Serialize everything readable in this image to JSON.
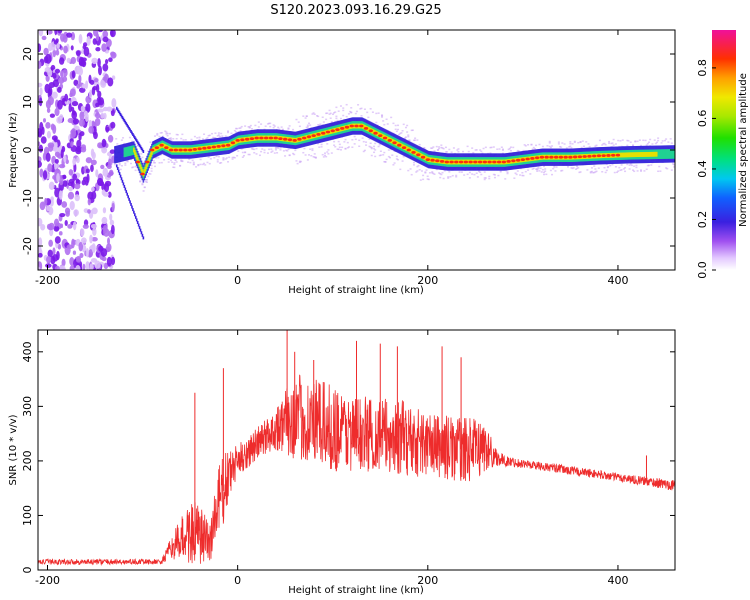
{
  "title": "S120.2023.093.16.29.G25",
  "colorbar": {
    "label": "Normalized spectral amplitude",
    "ticks": [
      "0.0",
      "0.2",
      "0.4",
      "0.6",
      "0.8"
    ],
    "tick_values": [
      0.0,
      0.2,
      0.4,
      0.6,
      0.8
    ],
    "range": [
      0,
      0.95
    ]
  },
  "chart_data": [
    {
      "type": "heatmap",
      "xlabel": "Height of straight line (km)",
      "ylabel": "Frequency (Hz)",
      "xlim": [
        -210,
        460
      ],
      "ylim": [
        -25,
        25
      ],
      "xticks": [
        -200,
        0,
        200,
        400
      ],
      "xtick_labels": [
        "-200",
        "0",
        "200",
        "400"
      ],
      "yticks": [
        20,
        10,
        0,
        -10,
        -20
      ],
      "ytick_labels": [
        "20",
        "10",
        "0",
        "-10",
        "-20"
      ],
      "ridge": {
        "x": [
          -140,
          -130,
          -120,
          -110,
          -100,
          -90,
          -80,
          -70,
          -50,
          -30,
          -10,
          0,
          20,
          40,
          60,
          80,
          100,
          120,
          130,
          150,
          170,
          190,
          200,
          220,
          250,
          280,
          300,
          320,
          350,
          380,
          410,
          460
        ],
        "y": [
          -1,
          -1,
          -0.5,
          0,
          -5,
          0,
          1,
          0,
          0,
          0.5,
          1,
          2,
          2.5,
          2.5,
          2,
          3,
          4,
          5,
          5,
          3,
          1,
          -1,
          -2,
          -2.5,
          -2.5,
          -2.5,
          -2,
          -1.5,
          -1.5,
          -1.2,
          -1,
          -0.8
        ]
      },
      "noise_region_x": [
        -210,
        -130
      ]
    },
    {
      "type": "line",
      "xlabel": "Height of straight line (km)",
      "ylabel": "SNR (10 * v/v)",
      "xlim": [
        -210,
        460
      ],
      "ylim": [
        0,
        440
      ],
      "xticks": [
        -200,
        0,
        200,
        400
      ],
      "xtick_labels": [
        "-200",
        "0",
        "200",
        "400"
      ],
      "yticks": [
        0,
        100,
        200,
        300,
        400
      ],
      "ytick_labels": [
        "0",
        "100",
        "200",
        "300",
        "400"
      ],
      "color": "#ee2c2c",
      "envelope": {
        "x": [
          -210,
          -80,
          -70,
          -50,
          -40,
          -30,
          -20,
          -10,
          0,
          20,
          40,
          60,
          80,
          100,
          120,
          140,
          160,
          180,
          200,
          220,
          240,
          260,
          270,
          280,
          300,
          340,
          380,
          420,
          460
        ],
        "mean": [
          15,
          15,
          40,
          70,
          60,
          50,
          120,
          170,
          200,
          230,
          260,
          280,
          270,
          260,
          250,
          250,
          245,
          240,
          230,
          225,
          220,
          225,
          210,
          200,
          195,
          185,
          175,
          165,
          155
        ],
        "spread": [
          5,
          5,
          20,
          60,
          60,
          40,
          80,
          50,
          30,
          30,
          40,
          80,
          80,
          80,
          70,
          70,
          70,
          70,
          60,
          60,
          60,
          50,
          20,
          10,
          8,
          8,
          8,
          8,
          10
        ]
      },
      "spikes": [
        {
          "x": -45,
          "y": 325
        },
        {
          "x": -15,
          "y": 370
        },
        {
          "x": 52,
          "y": 440
        },
        {
          "x": 60,
          "y": 400
        },
        {
          "x": 80,
          "y": 385
        },
        {
          "x": 125,
          "y": 420
        },
        {
          "x": 150,
          "y": 415
        },
        {
          "x": 168,
          "y": 410
        },
        {
          "x": 215,
          "y": 410
        },
        {
          "x": 235,
          "y": 390
        },
        {
          "x": 430,
          "y": 210
        }
      ]
    }
  ]
}
